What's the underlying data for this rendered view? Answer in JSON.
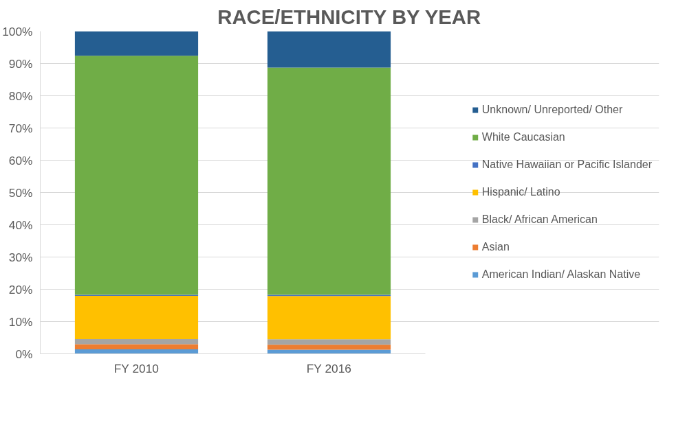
{
  "chart_data": {
    "type": "bar",
    "title": "RACE/ETHNICITY BY YEAR",
    "stacked": true,
    "categories": [
      "FY 2010",
      "FY 2016"
    ],
    "series": [
      {
        "name": "American Indian/ Alaskan Native",
        "color": "#5b9bd5",
        "values": [
          1.4,
          1.3
        ]
      },
      {
        "name": "Asian",
        "color": "#ed7d31",
        "values": [
          1.6,
          1.5
        ]
      },
      {
        "name": "Black/ African American",
        "color": "#a5a5a5",
        "values": [
          1.6,
          1.7
        ]
      },
      {
        "name": "Hispanic/ Latino",
        "color": "#ffc000",
        "values": [
          13.4,
          13.4
        ]
      },
      {
        "name": "Native Hawaiian or Pacific Islander",
        "color": "#4472c4",
        "values": [
          0.3,
          0.4
        ]
      },
      {
        "name": "White Caucasian",
        "color": "#70ad47",
        "values": [
          74.1,
          70.4
        ]
      },
      {
        "name": "Unknown/ Unreported/ Other",
        "color": "#255e91",
        "values": [
          7.6,
          11.3
        ]
      }
    ],
    "ylim": [
      0,
      100
    ],
    "yticks": [
      {
        "value": 0,
        "label": "0%"
      },
      {
        "value": 10,
        "label": "10%"
      },
      {
        "value": 20,
        "label": "20%"
      },
      {
        "value": 30,
        "label": "30%"
      },
      {
        "value": 40,
        "label": "40%"
      },
      {
        "value": 50,
        "label": "50%"
      },
      {
        "value": 60,
        "label": "60%"
      },
      {
        "value": 70,
        "label": "70%"
      },
      {
        "value": 80,
        "label": "80%"
      },
      {
        "value": 90,
        "label": "90%"
      },
      {
        "value": 100,
        "label": "100%"
      }
    ],
    "grid": "y",
    "legend": "right"
  }
}
